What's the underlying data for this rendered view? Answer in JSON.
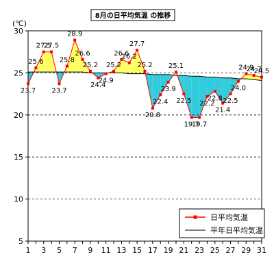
{
  "chart_data": {
    "type": "line",
    "title": "8月の日平均気温 の推移",
    "ylabel": "(℃)",
    "xlabel": "",
    "ylim": [
      5,
      30
    ],
    "yticks": [
      5,
      10,
      15,
      20,
      25,
      30
    ],
    "xticks": [
      1,
      3,
      5,
      7,
      9,
      11,
      13,
      15,
      17,
      19,
      21,
      23,
      25,
      27,
      29,
      31
    ],
    "x": [
      1,
      2,
      3,
      4,
      5,
      6,
      7,
      8,
      9,
      10,
      11,
      12,
      13,
      14,
      15,
      16,
      17,
      18,
      19,
      20,
      21,
      22,
      23,
      24,
      25,
      26,
      27,
      28,
      29,
      30,
      31
    ],
    "grid": "horizontal-dashed",
    "legend_position": "bottom-right",
    "series": [
      {
        "name": "日平均気温",
        "color": "#ff0000",
        "values": [
          23.7,
          25.6,
          27.5,
          27.5,
          23.7,
          25.8,
          28.9,
          26.6,
          25.2,
          24.4,
          24.9,
          25.2,
          26.6,
          26.2,
          27.7,
          25.2,
          20.8,
          22.4,
          23.9,
          25.1,
          22.5,
          19.7,
          19.7,
          22.2,
          22.8,
          21.4,
          22.5,
          24.0,
          24.9,
          24.7,
          24.5
        ]
      },
      {
        "name": "平年日平均気温",
        "color": "#000000",
        "values": [
          25.1,
          25.1,
          25.1,
          25.1,
          25.1,
          25.1,
          25.1,
          25.1,
          25.0,
          25.0,
          25.0,
          25.0,
          25.0,
          24.9,
          24.9,
          24.9,
          24.8,
          24.8,
          24.8,
          24.7,
          24.7,
          24.6,
          24.6,
          24.5,
          24.5,
          24.4,
          24.4,
          24.3,
          24.3,
          24.2,
          24.1
        ]
      }
    ],
    "fill_above_color": "#ffff66",
    "fill_below_color": "#33ccdd"
  }
}
